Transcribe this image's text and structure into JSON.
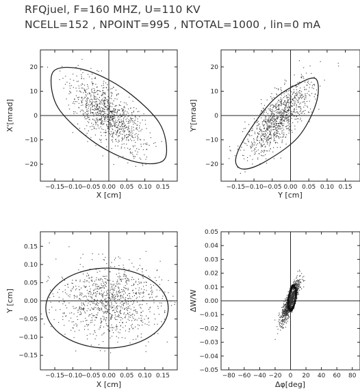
{
  "header": {
    "line1": "RFQjuel, F=160 MHZ, U=110 KV",
    "line2": "NCELL=152 , NPOINT=995 , NTOTAL=1000 , lin=0 mA"
  },
  "chart_data": [
    {
      "id": "xx",
      "type": "scatter",
      "xlabel": "X [cm]",
      "ylabel": "X'[mrad]",
      "xlim": [
        -0.19,
        0.19
      ],
      "ylim": [
        -27,
        27
      ],
      "xticks": [
        -0.15,
        -0.1,
        -0.05,
        0.0,
        0.05,
        0.1,
        0.15
      ],
      "xticklabels": [
        "−0.15",
        "−0.10",
        "−0.05",
        "0.00",
        "0.05",
        "0.10",
        "0.15"
      ],
      "yticks": [
        -20,
        -10,
        0,
        10,
        20
      ],
      "yticklabels": [
        "−20",
        "−10",
        "0",
        "10",
        "20"
      ],
      "ellipse": {
        "center": [
          0.0,
          0.0
        ],
        "points": [
          [
            -0.16,
            15.6
          ],
          [
            -0.13,
            19.7
          ],
          [
            -0.05,
            18.0
          ],
          [
            0.05,
            10.0
          ],
          [
            0.14,
            -3.0
          ],
          [
            0.16,
            -15.6
          ],
          [
            0.13,
            -19.7
          ],
          [
            0.05,
            -18.0
          ],
          [
            -0.05,
            -10.0
          ],
          [
            -0.14,
            3.0
          ]
        ]
      },
      "cloud": {
        "x_rms": 0.05,
        "y_slope": -100,
        "y_noise": 5.5,
        "count": 995
      }
    },
    {
      "id": "yy",
      "type": "scatter",
      "xlabel": "Y [cm]",
      "ylabel": "Y'[mrad]",
      "xlim": [
        -0.19,
        0.19
      ],
      "ylim": [
        -27,
        27
      ],
      "xticks": [
        -0.15,
        -0.1,
        -0.05,
        0.0,
        0.05,
        0.1,
        0.15
      ],
      "xticklabels": [
        "−0.15",
        "−0.10",
        "−0.05",
        "0.00",
        "0.05",
        "0.10",
        "0.15"
      ],
      "yticks": [
        -20,
        -10,
        0,
        10,
        20
      ],
      "yticklabels": [
        "−20",
        "−10",
        "0",
        "10",
        "20"
      ],
      "ellipse": {
        "center": [
          -0.03,
          -5.0
        ],
        "points": [
          [
            -0.13,
            -22.0
          ],
          [
            -0.07,
            -19.0
          ],
          [
            0.02,
            -9.0
          ],
          [
            0.07,
            5.0
          ],
          [
            0.07,
            15.0
          ],
          [
            0.02,
            13.0
          ],
          [
            -0.05,
            6.0
          ],
          [
            -0.12,
            -8.0
          ],
          [
            -0.15,
            -18.0
          ]
        ]
      },
      "cloud": {
        "x_rms": 0.045,
        "y_slope": 130,
        "y_noise": 5.0,
        "count": 995
      }
    },
    {
      "id": "xy",
      "type": "scatter",
      "xlabel": "X [cm]",
      "ylabel": "Y [cm]",
      "xlim": [
        -0.19,
        0.19
      ],
      "ylim": [
        -0.19,
        0.19
      ],
      "xticks": [
        -0.15,
        -0.1,
        -0.05,
        0.0,
        0.05,
        0.1,
        0.15
      ],
      "xticklabels": [
        "−0.15",
        "−0.10",
        "−0.05",
        "0.00",
        "0.05",
        "0.10",
        "0.15"
      ],
      "yticks": [
        -0.15,
        -0.1,
        -0.05,
        0.0,
        0.05,
        0.1,
        0.15
      ],
      "yticklabels": [
        "−0.15",
        "−0.10",
        "−0.05",
        "0.00",
        "0.05",
        "0.10",
        "0.15"
      ],
      "ellipse": {
        "center": [
          -0.005,
          -0.02
        ],
        "semi_axes": [
          0.17,
          0.11
        ]
      },
      "cloud": {
        "x_rms": 0.07,
        "y_rms": 0.05,
        "count": 995
      }
    },
    {
      "id": "phase",
      "type": "scatter",
      "xlabel": "Δφ[deg]",
      "ylabel": "ΔW/W",
      "xlim": [
        -90,
        90
      ],
      "ylim": [
        -0.05,
        0.05
      ],
      "xticks": [
        -80,
        -60,
        -40,
        -20,
        0,
        20,
        40,
        60,
        80
      ],
      "xticklabels": [
        "−80",
        "−60",
        "−40",
        "−20",
        "0",
        "20",
        "40",
        "60",
        "80"
      ],
      "yticks": [
        -0.05,
        -0.04,
        -0.03,
        -0.02,
        -0.01,
        0.0,
        0.01,
        0.02,
        0.03,
        0.04,
        0.05
      ],
      "yticklabels": [
        "−0.05",
        "−0.04",
        "−0.03",
        "−0.02",
        "−0.01",
        "0.00",
        "0.01",
        "0.02",
        "0.03",
        "0.04",
        "0.05"
      ],
      "ring": {
        "center": [
          2.0,
          0.002
        ],
        "semi_axes": [
          5.0,
          0.008
        ],
        "slope": 0.0007
      },
      "cloud": {
        "x_rms": 6.0,
        "y_slope": 0.0011,
        "y_noise": 0.004,
        "count": 995
      }
    }
  ]
}
